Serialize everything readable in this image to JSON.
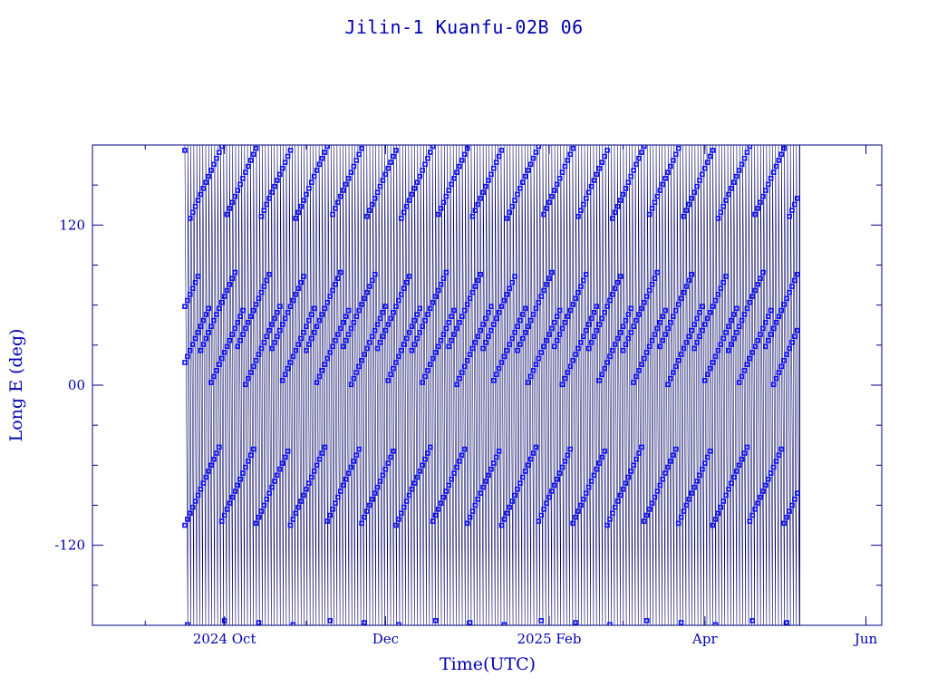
{
  "chart_data": {
    "type": "line",
    "title": "Jilin-1 Kuanfu-02B 06",
    "xlabel": "Time(UTC)",
    "ylabel": "Long E (deg)",
    "x_range": [
      "2024-08-12",
      "2025-06-07"
    ],
    "ylim": [
      -180,
      180
    ],
    "data_start": "2024-09-16",
    "data_end": "2025-05-07",
    "x_ticks": [
      {
        "date": "2024-10-01",
        "label": "2024 Oct"
      },
      {
        "date": "2024-12-01",
        "label": "Dec"
      },
      {
        "date": "2025-02-01",
        "label": "2025 Feb"
      },
      {
        "date": "2025-04-01",
        "label": "Apr"
      },
      {
        "date": "2025-06-01",
        "label": "Jun"
      }
    ],
    "y_ticks": [
      {
        "value": 120,
        "label": "120"
      },
      {
        "value": 0,
        "label": "00"
      },
      {
        "value": -120,
        "label": "-120"
      }
    ],
    "series": [
      {
        "description_source": "sub-satellite longitude ground track, wrapping from +180 to -180",
        "color": "#000060",
        "marker_color": "#1010ff",
        "marker_longitude_bands": [
          -75,
          30,
          55,
          155
        ],
        "marker_drift_deg_per_day": 4.5
      }
    ],
    "grid": false,
    "legend": "none"
  }
}
